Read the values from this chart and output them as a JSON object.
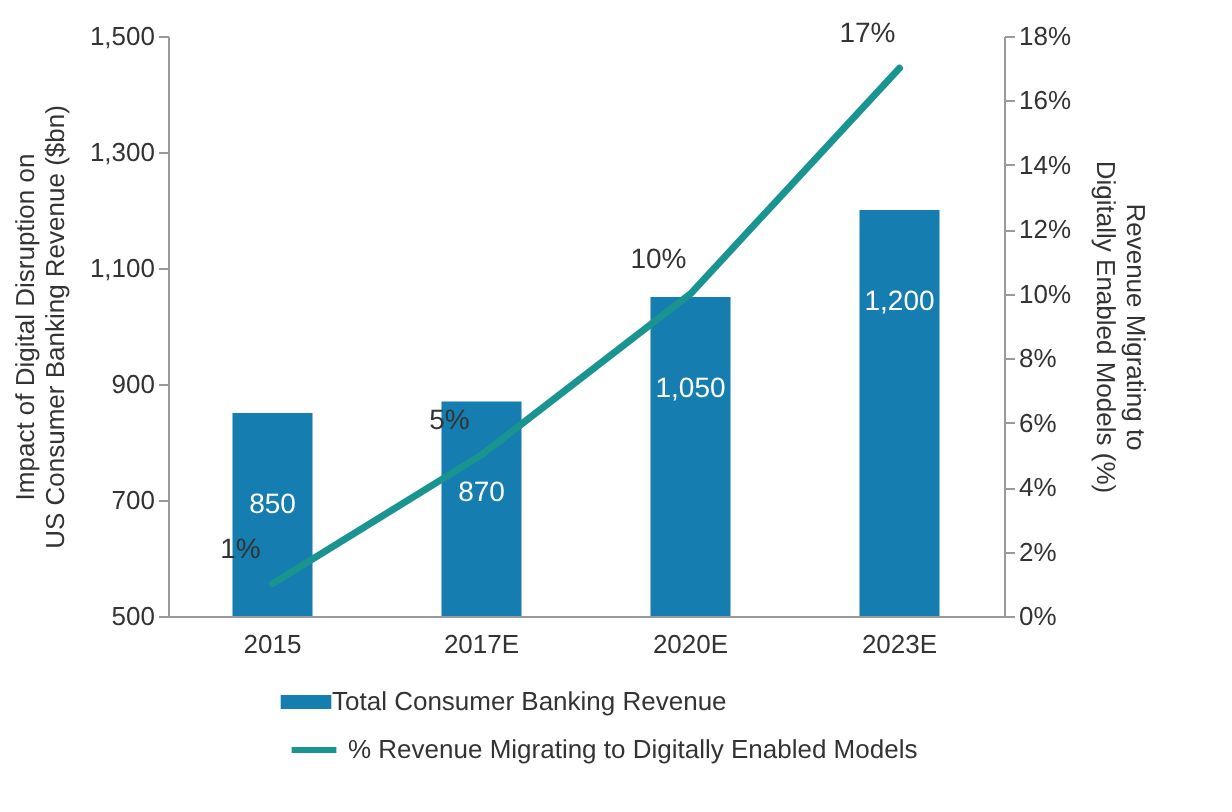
{
  "chart_data": {
    "type": "bar",
    "categories": [
      "2015",
      "2017E",
      "2020E",
      "2023E"
    ],
    "series": [
      {
        "name": "Total Consumer Banking Revenue",
        "color": "#157db0",
        "values": [
          850,
          870,
          1050,
          1200
        ],
        "value_labels": [
          "850",
          "870",
          "1,050",
          "1,200"
        ]
      },
      {
        "name": "% Revenue Migrating to Digitally Enabled Models",
        "type": "line",
        "axis": "y2",
        "color": "#1a9490",
        "values": [
          1,
          5,
          10,
          17
        ],
        "value_labels": [
          "1%",
          "5%",
          "10%",
          "17%"
        ]
      }
    ],
    "ylabel": "Impact of Digital Disruption on US Consumer Banking Revenue ($bn)",
    "y2label": "Revenue Migrating to Digitally Enabled Models (%)",
    "ylim": [
      500,
      1500
    ],
    "yticks": [
      500,
      700,
      900,
      {
        "value": 1100,
        "label": "1,100"
      },
      {
        "value": 1300,
        "label": "1,300"
      },
      {
        "value": 1500,
        "label": "1,500"
      }
    ],
    "y2lim": [
      0,
      18
    ],
    "y2ticks": [
      {
        "value": 0,
        "label": "0%"
      },
      {
        "value": 2,
        "label": "2%"
      },
      {
        "value": 4,
        "label": "4%"
      },
      {
        "value": 6,
        "label": "6%"
      },
      {
        "value": 8,
        "label": "8%"
      },
      {
        "value": 10,
        "label": "10%"
      },
      {
        "value": 12,
        "label": "12%"
      },
      {
        "value": 14,
        "label": "14%"
      },
      {
        "value": 16,
        "label": "16%"
      },
      {
        "value": 18,
        "label": "18%"
      }
    ],
    "legend": "bottom",
    "grid": false,
    "line_style": "solid",
    "marker": "none"
  }
}
